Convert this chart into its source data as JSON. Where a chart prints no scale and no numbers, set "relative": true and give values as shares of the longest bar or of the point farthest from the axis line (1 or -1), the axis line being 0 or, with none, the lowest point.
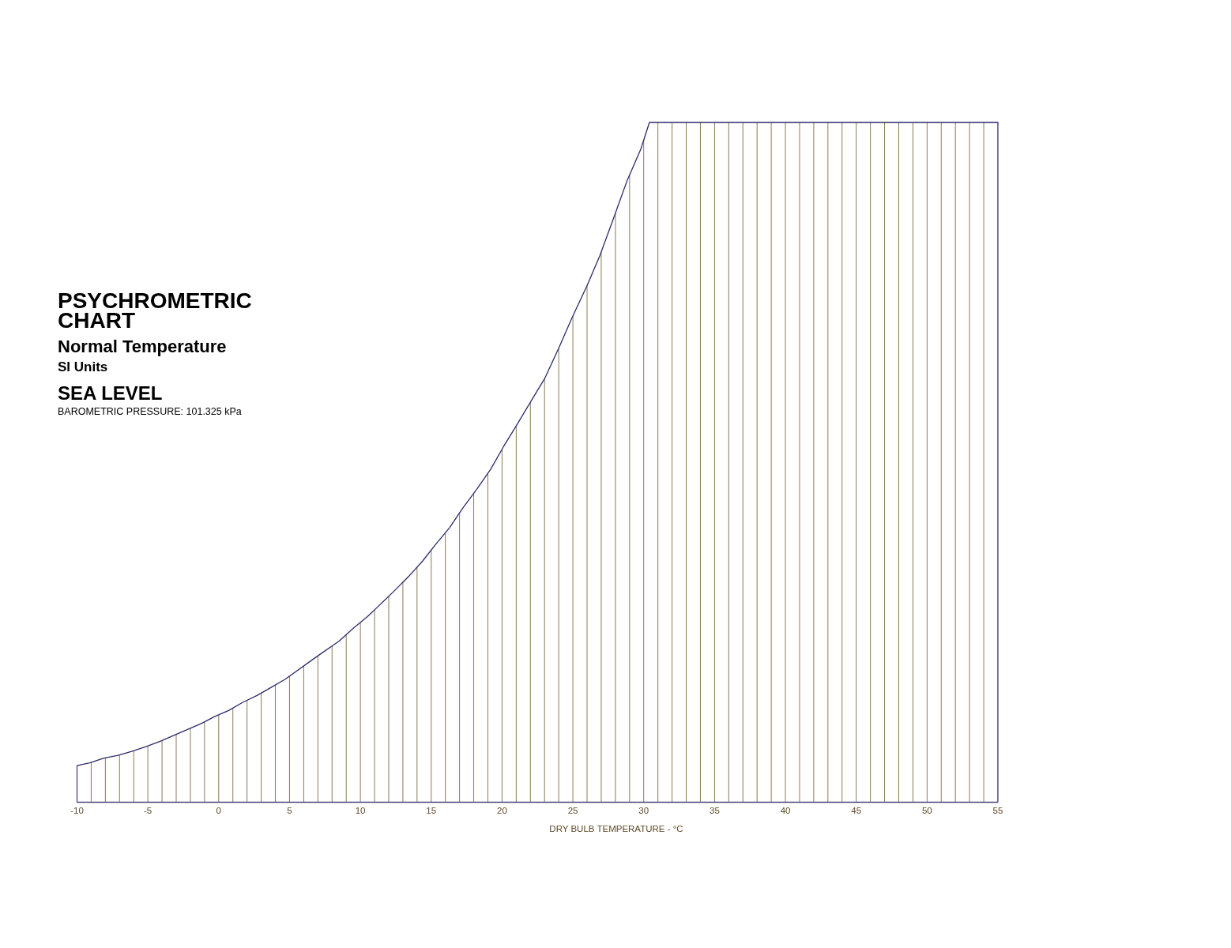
{
  "chart_data": {
    "type": "line",
    "title": "PSYCHROMETRIC CHART",
    "subtitle": "Normal Temperature",
    "annotations": [
      "SI Units",
      "SEA LEVEL",
      "BAROMETRIC PRESSURE: 101.325 kPa"
    ],
    "xlabel": "DRY BULB TEMPERATURE - °C",
    "relative": true,
    "xlim": [
      -10,
      55
    ],
    "xticks": [
      -10,
      {
        "value": -9,
        "label": null
      },
      {
        "value": -8,
        "label": null
      },
      {
        "value": -7,
        "label": null
      },
      {
        "value": -6,
        "label": null
      },
      -5,
      {
        "value": -4,
        "label": null
      },
      {
        "value": -3,
        "label": null
      },
      {
        "value": -2,
        "label": null
      },
      {
        "value": -1,
        "label": null
      },
      0,
      {
        "value": 1,
        "label": null
      },
      {
        "value": 2,
        "label": null
      },
      {
        "value": 3,
        "label": null
      },
      {
        "value": 4,
        "label": null
      },
      5,
      {
        "value": 6,
        "label": null
      },
      {
        "value": 7,
        "label": null
      },
      {
        "value": 8,
        "label": null
      },
      {
        "value": 9,
        "label": null
      },
      10,
      {
        "value": 11,
        "label": null
      },
      {
        "value": 12,
        "label": null
      },
      {
        "value": 13,
        "label": null
      },
      {
        "value": 14,
        "label": null
      },
      15,
      {
        "value": 16,
        "label": null
      },
      {
        "value": 17,
        "label": null
      },
      {
        "value": 18,
        "label": null
      },
      {
        "value": 19,
        "label": null
      },
      20,
      {
        "value": 21,
        "label": null
      },
      {
        "value": 22,
        "label": null
      },
      {
        "value": 23,
        "label": null
      },
      {
        "value": 24,
        "label": null
      },
      25,
      {
        "value": 26,
        "label": null
      },
      {
        "value": 27,
        "label": null
      },
      {
        "value": 28,
        "label": null
      },
      {
        "value": 29,
        "label": null
      },
      30,
      {
        "value": 31,
        "label": null
      },
      {
        "value": 32,
        "label": null
      },
      {
        "value": 33,
        "label": null
      },
      {
        "value": 34,
        "label": null
      },
      35,
      {
        "value": 36,
        "label": null
      },
      {
        "value": 37,
        "label": null
      },
      {
        "value": 38,
        "label": null
      },
      {
        "value": 39,
        "label": null
      },
      40,
      {
        "value": 41,
        "label": null
      },
      {
        "value": 42,
        "label": null
      },
      {
        "value": 43,
        "label": null
      },
      {
        "value": 44,
        "label": null
      },
      45,
      {
        "value": 46,
        "label": null
      },
      {
        "value": 47,
        "label": null
      },
      {
        "value": 48,
        "label": null
      },
      {
        "value": 49,
        "label": null
      },
      50,
      {
        "value": 51,
        "label": null
      },
      {
        "value": 52,
        "label": null
      },
      {
        "value": 53,
        "label": null
      },
      {
        "value": 54,
        "label": null
      },
      55
    ],
    "grid": "x",
    "series": [
      {
        "color": "#2b2b6b",
        "x": [
          -10,
          -9.1,
          -8.1,
          -7.1,
          -6.1,
          -5.1,
          -4.1,
          -3.2,
          -2.2,
          -1.2,
          -0.3,
          0.7,
          1.7,
          2.7,
          3.7,
          4.7,
          6.9,
          8.5,
          9.5,
          10.5,
          11.4,
          12.4,
          13.4,
          14.4,
          15.3,
          16.3,
          17.2,
          18.2,
          19.2,
          20.1,
          21.1,
          22.1,
          23.0,
          24.0,
          24.9,
          26.0,
          26.9,
          27.8,
          28.8,
          29.8,
          30.4,
          55
        ],
        "values": [
          0.054,
          0.058,
          0.065,
          0.069,
          0.075,
          0.082,
          0.09,
          0.098,
          0.107,
          0.116,
          0.126,
          0.135,
          0.147,
          0.157,
          0.169,
          0.181,
          0.214,
          0.237,
          0.256,
          0.273,
          0.291,
          0.311,
          0.332,
          0.355,
          0.379,
          0.404,
          0.432,
          0.46,
          0.49,
          0.523,
          0.557,
          0.592,
          0.623,
          0.668,
          0.711,
          0.76,
          0.804,
          0.855,
          0.913,
          0.961,
          1,
          1
        ]
      }
    ]
  }
}
